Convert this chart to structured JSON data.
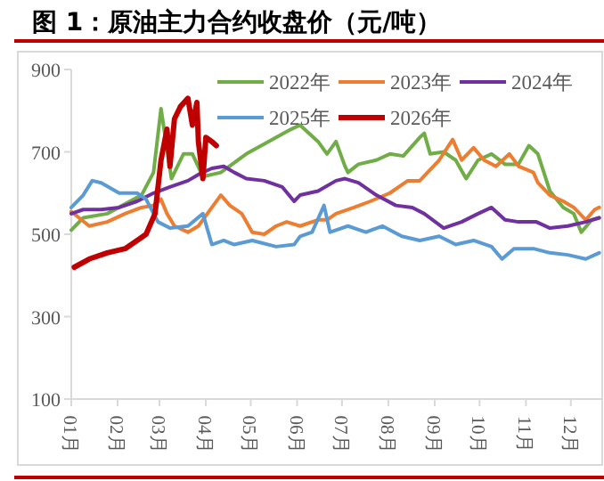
{
  "chart_data": {
    "type": "line",
    "title": "图 1：原油主力合约收盘价（元/吨）",
    "xlim": [
      "--01-01",
      "--12-22"
    ],
    "ylim": [
      100,
      900
    ],
    "yticks": [
      100,
      300,
      500,
      700,
      900
    ],
    "xticks": [
      {
        "value": "--01-01",
        "label": "01月"
      },
      {
        "value": "--02-01",
        "label": "02月"
      },
      {
        "value": "--03-01",
        "label": "03月"
      },
      {
        "value": "--04-01",
        "label": "04月"
      },
      {
        "value": "--05-01",
        "label": "05月"
      },
      {
        "value": "--06-01",
        "label": "06月"
      },
      {
        "value": "--07-01",
        "label": "07月"
      },
      {
        "value": "--08-01",
        "label": "08月"
      },
      {
        "value": "--09-01",
        "label": "09月"
      },
      {
        "value": "--10-01",
        "label": "10月"
      },
      {
        "value": "--11-01",
        "label": "11月"
      },
      {
        "value": "--12-01",
        "label": "12月"
      }
    ],
    "grid": false,
    "legend": "top",
    "marker": "none",
    "line_style": "solid",
    "series": [
      {
        "name": "2022年",
        "color": "#70ad47",
        "x": [
          "--01-01",
          "--01-09",
          "--01-25",
          "--02-17",
          "--02-25",
          "--03-02",
          "--03-09",
          "--03-17",
          "--03-23",
          "--03-30",
          "--04-11",
          "--04-28",
          "--05-18",
          "--05-28",
          "--06-03",
          "--06-15",
          "--06-21",
          "--06-27",
          "--07-03",
          "--07-05",
          "--07-12",
          "--07-24",
          "--08-02",
          "--08-11",
          "--08-22",
          "--08-25",
          "--08-29",
          "--09-07",
          "--09-15",
          "--09-22",
          "--09-30",
          "--10-09",
          "--10-18",
          "--10-27",
          "--11-03",
          "--11-09",
          "--11-17",
          "--11-26",
          "--12-03",
          "--12-08",
          "--12-15",
          "--12-20"
        ],
        "values": [
          510,
          540,
          550,
          595,
          650,
          805,
          635,
          695,
          695,
          640,
          650,
          695,
          735,
          755,
          765,
          725,
          695,
          725,
          665,
          650,
          670,
          680,
          695,
          690,
          735,
          745,
          695,
          700,
          680,
          635,
          680,
          695,
          670,
          670,
          715,
          695,
          605,
          565,
          550,
          505,
          535,
          540
        ]
      },
      {
        "name": "2023年",
        "color": "#ed7d31",
        "x": [
          "--01-01",
          "--01-13",
          "--01-25",
          "--02-06",
          "--02-17",
          "--02-25",
          "--03-02",
          "--03-06",
          "--03-11",
          "--03-20",
          "--03-27",
          "--04-05",
          "--04-11",
          "--04-17",
          "--04-25",
          "--05-02",
          "--05-10",
          "--05-18",
          "--05-25",
          "--06-03",
          "--06-15",
          "--06-21",
          "--06-27",
          "--07-09",
          "--07-20",
          "--08-02",
          "--08-14",
          "--08-22",
          "--09-04",
          "--09-13",
          "--09-19",
          "--09-27",
          "--10-04",
          "--10-12",
          "--10-21",
          "--10-27",
          "--11-06",
          "--11-09",
          "--11-17",
          "--11-26",
          "--12-03",
          "--12-11",
          "--12-17",
          "--12-20"
        ],
        "values": [
          555,
          520,
          530,
          550,
          565,
          570,
          585,
          550,
          520,
          505,
          520,
          565,
          595,
          570,
          550,
          505,
          500,
          520,
          530,
          520,
          535,
          535,
          550,
          565,
          580,
          600,
          630,
          630,
          680,
          730,
          680,
          710,
          680,
          665,
          695,
          665,
          650,
          625,
          595,
          580,
          565,
          535,
          560,
          565
        ]
      },
      {
        "name": "2024年",
        "color": "#7030a0",
        "x": [
          "--01-01",
          "--01-09",
          "--01-21",
          "--02-02",
          "--02-14",
          "--02-25",
          "--03-08",
          "--03-20",
          "--03-27",
          "--04-05",
          "--04-13",
          "--04-20",
          "--04-28",
          "--05-10",
          "--05-22",
          "--05-30",
          "--06-03",
          "--06-15",
          "--06-27",
          "--07-03",
          "--07-12",
          "--07-24",
          "--08-06",
          "--08-17",
          "--08-25",
          "--09-07",
          "--09-19",
          "--09-30",
          "--10-09",
          "--10-18",
          "--10-27",
          "--11-08",
          "--11-17",
          "--11-29",
          "--12-11",
          "--12-20"
        ],
        "values": [
          550,
          560,
          560,
          565,
          580,
          600,
          615,
          630,
          645,
          660,
          665,
          650,
          635,
          630,
          615,
          580,
          595,
          605,
          630,
          635,
          625,
          595,
          570,
          565,
          550,
          515,
          530,
          550,
          565,
          535,
          530,
          530,
          515,
          520,
          530,
          540
        ]
      },
      {
        "name": "2025年",
        "color": "#5b9bd5",
        "x": [
          "--01-01",
          "--01-09",
          "--01-15",
          "--01-21",
          "--02-02",
          "--02-14",
          "--02-20",
          "--02-28",
          "--03-08",
          "--03-20",
          "--03-30",
          "--04-05",
          "--04-13",
          "--04-20",
          "--05-02",
          "--05-18",
          "--05-30",
          "--06-03",
          "--06-11",
          "--06-19",
          "--06-23",
          "--07-05",
          "--07-17",
          "--07-28",
          "--08-10",
          "--08-22",
          "--09-04",
          "--09-15",
          "--09-27",
          "--10-09",
          "--10-16",
          "--10-24",
          "--11-06",
          "--11-17",
          "--11-29",
          "--12-11",
          "--12-20"
        ],
        "values": [
          565,
          595,
          630,
          625,
          600,
          600,
          585,
          530,
          515,
          520,
          550,
          475,
          485,
          475,
          485,
          470,
          475,
          495,
          505,
          570,
          505,
          520,
          505,
          520,
          495,
          485,
          495,
          475,
          485,
          470,
          440,
          465,
          465,
          455,
          450,
          440,
          455
        ]
      },
      {
        "name": "2026年",
        "color": "#c00000",
        "x": [
          "--01-03",
          "--01-13",
          "--01-25",
          "--02-06",
          "--02-14",
          "--02-20",
          "--02-26",
          "--03-02",
          "--03-06",
          "--03-08",
          "--03-11",
          "--03-15",
          "--03-20",
          "--03-23",
          "--03-26",
          "--03-27",
          "--03-30",
          "--04-01",
          "--04-05",
          "--04-08"
        ],
        "values": [
          420,
          440,
          455,
          465,
          485,
          500,
          550,
          680,
          755,
          665,
          780,
          810,
          830,
          765,
          820,
          725,
          635,
          735,
          725,
          715
        ]
      }
    ]
  }
}
